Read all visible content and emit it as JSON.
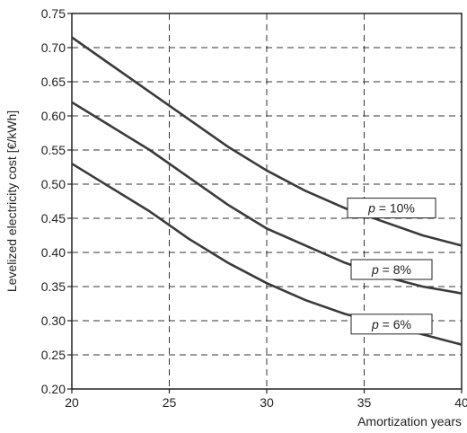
{
  "chart_data": {
    "type": "line",
    "xlabel": "Amortization years",
    "ylabel": "Levelized electricity cost [€/kWh]",
    "xlim": [
      20,
      40
    ],
    "ylim": [
      0.2,
      0.75
    ],
    "x_ticks": [
      "20",
      "25",
      "30",
      "35",
      "40"
    ],
    "y_ticks": [
      "0.20",
      "0.25",
      "0.30",
      "0.35",
      "0.40",
      "0.45",
      "0.50",
      "0.55",
      "0.60",
      "0.65",
      "0.70",
      "0.75"
    ],
    "grid": "dashed",
    "series": [
      {
        "name": "p = 10%",
        "x": [
          20,
          22,
          24,
          26,
          28,
          30,
          32,
          34,
          36,
          38,
          40
        ],
        "y": [
          0.715,
          0.675,
          0.635,
          0.595,
          0.555,
          0.52,
          0.49,
          0.465,
          0.445,
          0.425,
          0.41
        ]
      },
      {
        "name": "p = 8%",
        "x": [
          20,
          22,
          24,
          26,
          28,
          30,
          32,
          34,
          36,
          38,
          40
        ],
        "y": [
          0.62,
          0.585,
          0.55,
          0.51,
          0.47,
          0.435,
          0.41,
          0.385,
          0.365,
          0.35,
          0.34
        ]
      },
      {
        "name": "p = 6%",
        "x": [
          20,
          22,
          24,
          26,
          28,
          30,
          32,
          34,
          36,
          38,
          40
        ],
        "y": [
          0.53,
          0.495,
          0.46,
          0.42,
          0.385,
          0.355,
          0.33,
          0.31,
          0.295,
          0.28,
          0.265
        ]
      }
    ],
    "annotations": [
      {
        "prefix": "p",
        "suffix": " = 10%",
        "series": 0
      },
      {
        "prefix": "p",
        "suffix": " = 8%",
        "series": 1
      },
      {
        "prefix": "p",
        "suffix": " = 6%",
        "series": 2
      }
    ]
  }
}
